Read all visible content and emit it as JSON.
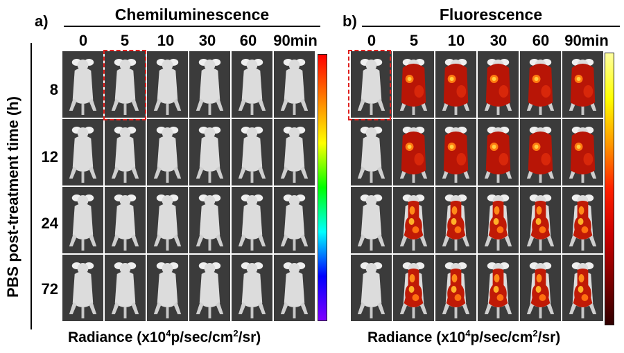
{
  "figure": {
    "y_axis_title": "PBS post-treatment time (h)",
    "row_labels": [
      "8",
      "12",
      "24",
      "72"
    ],
    "col_labels": [
      "0",
      "5",
      "10",
      "30",
      "60",
      "90min"
    ]
  },
  "panel_a": {
    "label": "a)",
    "title": "Chemiluminescence",
    "footer": {
      "prefix": "Radiance (x10",
      "exp": "4",
      "mid": "p/sec/cm",
      "exp2": "2",
      "suffix": "/sr)"
    },
    "colorbar": "rainbow",
    "highlighted_cell": {
      "row": 0,
      "col": 1
    }
  },
  "panel_b": {
    "label": "b)",
    "title": "Fluorescence",
    "footer": {
      "prefix": "Radiance (x10",
      "exp": "4",
      "mid": "p/sec/cm",
      "exp2": "2",
      "suffix": "/sr)"
    },
    "colorbar": "hot",
    "highlighted_cell": {
      "row": 0,
      "col": 0
    }
  },
  "colors": {
    "highlight": "#e0201e",
    "cell_background": "#3a3a3a",
    "mouse": "#dcdcdc"
  }
}
